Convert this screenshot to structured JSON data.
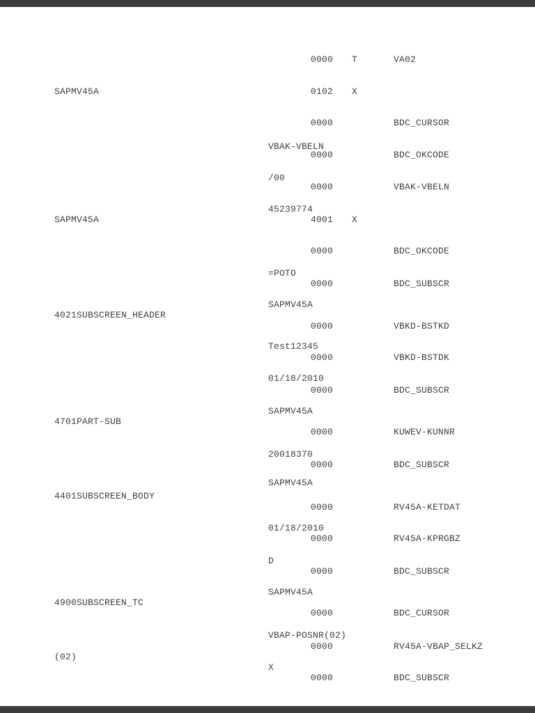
{
  "page": {
    "background": "#ffffff",
    "letterbox_color": "#3c3c3c",
    "text_color": "#404040"
  },
  "document": {
    "lines": [
      [
        {
          "c": "num",
          "t": "0000"
        },
        {
          "c": "ind",
          "t": "T"
        },
        {
          "c": "field",
          "t": "VA02"
        }
      ],
      [
        {
          "c": "left",
          "t": "SAPMV45A"
        },
        {
          "c": "num",
          "t": "0102"
        },
        {
          "c": "ind",
          "t": "X"
        }
      ],
      [
        {
          "c": "num",
          "t": "0000"
        },
        {
          "c": "field",
          "t": "BDC_CURSOR"
        }
      ],
      [
        {
          "c": "value",
          "t": "VBAK-VBELN"
        }
      ],
      [
        {
          "c": "num",
          "t": "0000"
        },
        {
          "c": "field",
          "t": "BDC_OKCODE"
        }
      ],
      [
        {
          "c": "value",
          "t": "/00"
        }
      ],
      [
        {
          "c": "num",
          "t": "0000"
        },
        {
          "c": "field",
          "t": "VBAK-VBELN"
        }
      ],
      [
        {
          "c": "value",
          "t": "45239774"
        }
      ],
      [
        {
          "c": "left",
          "t": "SAPMV45A"
        },
        {
          "c": "num",
          "t": "4001"
        },
        {
          "c": "ind",
          "t": "X"
        }
      ],
      [
        {
          "c": "num",
          "t": "0000"
        },
        {
          "c": "field",
          "t": "BDC_OKCODE"
        }
      ],
      [
        {
          "c": "value",
          "t": "=POTO"
        }
      ],
      [
        {
          "c": "num",
          "t": "0000"
        },
        {
          "c": "field",
          "t": "BDC_SUBSCR"
        }
      ],
      [
        {
          "c": "value",
          "t": "SAPMV45A"
        }
      ],
      [
        {
          "c": "left",
          "t": "4021SUBSCREEN_HEADER"
        }
      ],
      [
        {
          "c": "num",
          "t": "0000"
        },
        {
          "c": "field",
          "t": "VBKD-BSTKD"
        }
      ],
      [
        {
          "c": "value",
          "t": "Test12345"
        }
      ],
      [
        {
          "c": "num",
          "t": "0000"
        },
        {
          "c": "field",
          "t": "VBKD-BSTDK"
        }
      ],
      [
        {
          "c": "value",
          "t": "01/18/2010"
        }
      ],
      [
        {
          "c": "num",
          "t": "0000"
        },
        {
          "c": "field",
          "t": "BDC_SUBSCR"
        }
      ],
      [
        {
          "c": "value",
          "t": "SAPMV45A"
        }
      ],
      [
        {
          "c": "left",
          "t": "4701PART-SUB"
        }
      ],
      [
        {
          "c": "num",
          "t": "0000"
        },
        {
          "c": "field",
          "t": "KUWEV-KUNNR"
        }
      ],
      [
        {
          "c": "value",
          "t": "20018370"
        }
      ],
      [
        {
          "c": "num",
          "t": "0000"
        },
        {
          "c": "field",
          "t": "BDC_SUBSCR"
        }
      ],
      [
        {
          "c": "value",
          "t": "SAPMV45A"
        }
      ],
      [
        {
          "c": "left",
          "t": "4401SUBSCREEN_BODY"
        }
      ],
      [
        {
          "c": "num",
          "t": "0000"
        },
        {
          "c": "field",
          "t": "RV45A-KETDAT"
        }
      ],
      [
        {
          "c": "value",
          "t": "01/18/2010"
        }
      ],
      [
        {
          "c": "num",
          "t": "0000"
        },
        {
          "c": "field",
          "t": "RV45A-KPRGBZ"
        }
      ],
      [
        {
          "c": "value",
          "t": "D"
        }
      ],
      [
        {
          "c": "num",
          "t": "0000"
        },
        {
          "c": "field",
          "t": "BDC_SUBSCR"
        }
      ],
      [
        {
          "c": "value",
          "t": "SAPMV45A"
        }
      ],
      [
        {
          "c": "left",
          "t": "4900SUBSCREEN_TC"
        }
      ],
      [
        {
          "c": "num",
          "t": "0000"
        },
        {
          "c": "field",
          "t": "BDC_CURSOR"
        }
      ],
      [
        {
          "c": "value",
          "t": "VBAP-POSNR(02)"
        }
      ],
      [
        {
          "c": "num",
          "t": "0000"
        },
        {
          "c": "field",
          "t": "RV45A-VBAP_SELKZ"
        }
      ],
      [
        {
          "c": "left",
          "t": "(02)"
        }
      ],
      [
        {
          "c": "value",
          "t": "X"
        }
      ],
      [
        {
          "c": "num",
          "t": "0000"
        },
        {
          "c": "field",
          "t": "BDC_SUBSCR"
        }
      ]
    ]
  }
}
